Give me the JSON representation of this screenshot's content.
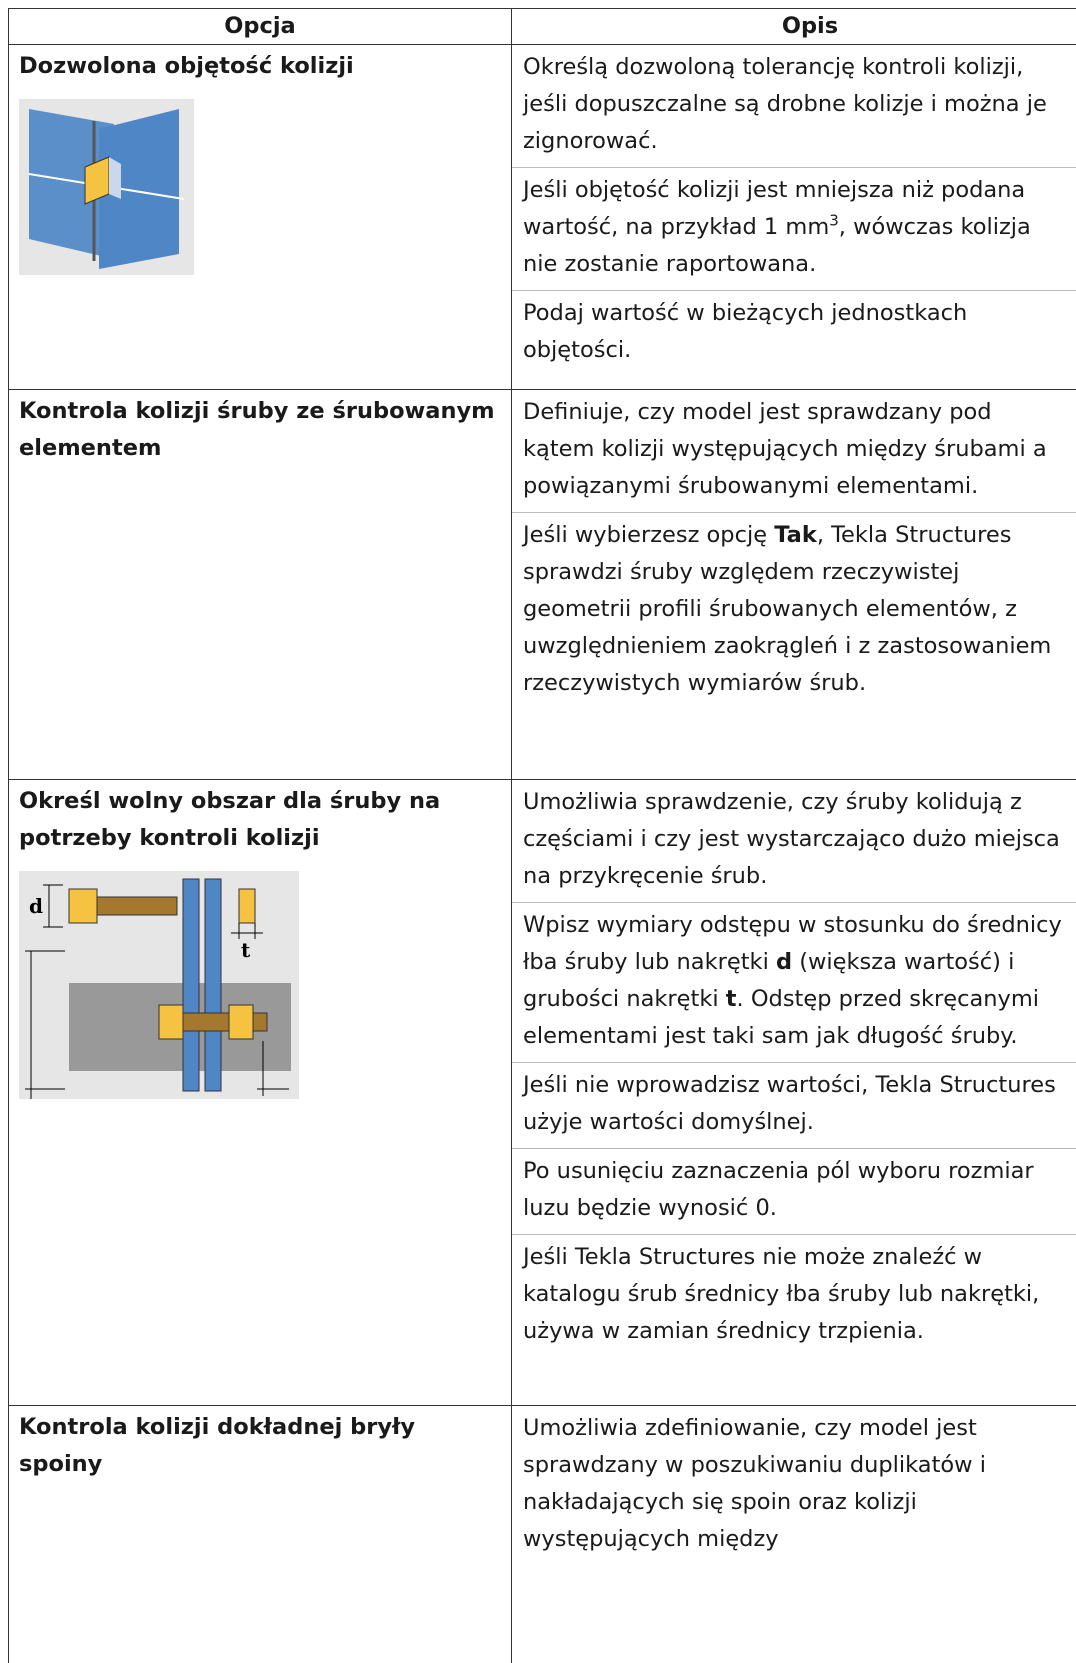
{
  "table": {
    "header": [
      "Opcja",
      "Opis"
    ],
    "rows": [
      {
        "option": "Dozwolona objętość kolizji",
        "description": [
          [
            {
              "text": "Określą dozwoloną tolerancję kontroli kolizji, jeśli dopuszczalne są drobne kolizje i można je zignorować."
            }
          ],
          [
            {
              "text": "Jeśli objętość kolizji jest mniejsza niż podana wartość, na przykład 1 mm"
            },
            {
              "text": "3",
              "style": "superscript"
            },
            {
              "text": ", wówczas kolizja nie zostanie raportowana."
            }
          ],
          [
            {
              "text": "Podaj wartość w bieżących jednostkach objętości."
            }
          ]
        ]
      },
      {
        "option": "Kontrola kolizji śruby ze śrubowanym elementem",
        "description": [
          [
            {
              "text": "Definiuje, czy model jest sprawdzany pod kątem kolizji występujących między śrubami a powiązanymi śrubowanymi elementami."
            }
          ],
          [
            {
              "text": "Jeśli wybierzesz opcję "
            },
            {
              "text": "Tak",
              "style": "bold"
            },
            {
              "text": ", Tekla Structures sprawdzi śruby względem rzeczywistej geometrii profili śrubowanych elementów, z uwzględnieniem zaokrągleń i z zastosowaniem rzeczywistych wymiarów śrub."
            }
          ]
        ]
      },
      {
        "option": "Określ wolny obszar dla śruby na potrzeby kontroli kolizji",
        "image_labels": [
          "d",
          "t"
        ],
        "description": [
          [
            {
              "text": "Umożliwia sprawdzenie, czy śruby kolidują z częściami i czy jest wystarczająco dużo miejsca na przykręcenie śrub."
            }
          ],
          [
            {
              "text": "Wpisz wymiary odstępu w stosunku do średnicy łba śruby lub nakrętki "
            },
            {
              "text": "d",
              "style": "bold"
            },
            {
              "text": " (większa wartość) i grubości nakrętki "
            },
            {
              "text": "t",
              "style": "bold"
            },
            {
              "text": ". Odstęp przed skręcanymi elementami jest taki sam jak długość śruby."
            }
          ],
          [
            {
              "text": "Jeśli nie wprowadzisz wartości, Tekla Structures użyje wartości domyślnej."
            }
          ],
          [
            {
              "text": "Po usunięciu zaznaczenia pól wyboru rozmiar luzu będzie wynosić 0."
            }
          ],
          [
            {
              "text": "Jeśli Tekla Structures nie może znaleźć w katalogu śrub średnicy łba śruby lub nakrętki, używa w zamian średnicy trzpienia."
            }
          ]
        ]
      },
      {
        "option": "Kontrola kolizji dokładnej bryły spoiny",
        "description": [
          [
            {
              "text": "Umożliwia zdefiniowanie, czy model jest sprawdzany w poszukiwaniu duplikatów i nakładających się spoin oraz kolizji występujących między"
            }
          ]
        ]
      }
    ]
  }
}
